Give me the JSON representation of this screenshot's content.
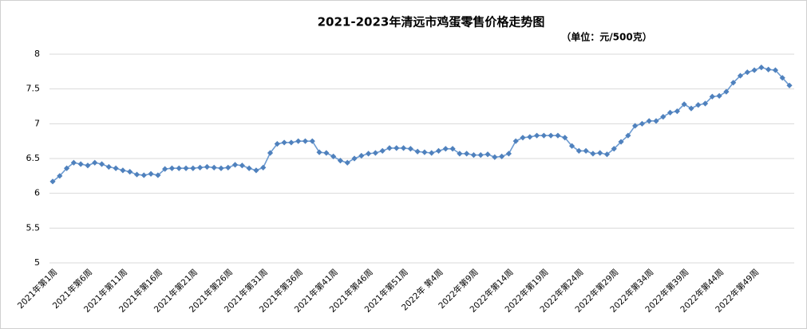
{
  "chart_data": {
    "type": "line",
    "title": "2021-2023年清远市鸡蛋零售价格走势图",
    "subtitle": "（单位：元/500克）",
    "categories": [
      "2021年第1周",
      null,
      null,
      null,
      null,
      "2021年第6周",
      null,
      null,
      null,
      null,
      "2021年第11周",
      null,
      null,
      null,
      null,
      "2021年第16周",
      null,
      null,
      null,
      null,
      "2021年第21周",
      null,
      null,
      null,
      null,
      "2021年第26周",
      null,
      null,
      null,
      null,
      "2021年第31周",
      null,
      null,
      null,
      null,
      "2021年第36周",
      null,
      null,
      null,
      null,
      "2021年第41周",
      null,
      null,
      null,
      null,
      "2021年第46周",
      null,
      null,
      null,
      null,
      "2021年第51周",
      null,
      null,
      null,
      null,
      "2022年 第4周",
      null,
      null,
      null,
      null,
      "2022年第9周",
      null,
      null,
      null,
      null,
      "2022年第14周",
      null,
      null,
      null,
      null,
      "2022年第19周",
      null,
      null,
      null,
      null,
      "2022年第24周",
      null,
      null,
      null,
      null,
      "2022年第29周",
      null,
      null,
      null,
      null,
      "2022年第34周",
      null,
      null,
      null,
      null,
      "2022年第39周",
      null,
      null,
      null,
      null,
      "2022年第44周",
      null,
      null,
      null,
      null,
      "2022年第49周",
      null,
      null,
      null,
      null,
      null
    ],
    "values": [
      6.17,
      6.25,
      6.36,
      6.44,
      6.42,
      6.4,
      6.44,
      6.42,
      6.38,
      6.36,
      6.33,
      6.31,
      6.27,
      6.26,
      6.28,
      6.26,
      6.35,
      6.36,
      6.36,
      6.36,
      6.36,
      6.37,
      6.38,
      6.37,
      6.36,
      6.37,
      6.41,
      6.4,
      6.36,
      6.33,
      6.37,
      6.58,
      6.71,
      6.73,
      6.73,
      6.75,
      6.75,
      6.75,
      6.59,
      6.58,
      6.53,
      6.47,
      6.44,
      6.5,
      6.54,
      6.57,
      6.58,
      6.61,
      6.65,
      6.65,
      6.65,
      6.64,
      6.6,
      6.59,
      6.58,
      6.61,
      6.64,
      6.64,
      6.57,
      6.57,
      6.55,
      6.55,
      6.56,
      6.52,
      6.53,
      6.57,
      6.75,
      6.8,
      6.81,
      6.83,
      6.83,
      6.83,
      6.83,
      6.8,
      6.68,
      6.61,
      6.61,
      6.57,
      6.58,
      6.56,
      6.64,
      6.74,
      6.83,
      6.97,
      7.0,
      7.04,
      7.04,
      7.1,
      7.16,
      7.18,
      7.28,
      7.22,
      7.27,
      7.29,
      7.39,
      7.4,
      7.46,
      7.59,
      7.69,
      7.74,
      7.77,
      7.81,
      7.78,
      7.77,
      7.66,
      7.55
    ],
    "color": "#4f81bd",
    "ylim": [
      5,
      8
    ],
    "yticks": [
      5,
      5.5,
      6,
      6.5,
      7,
      7.5,
      8
    ],
    "grid": true
  }
}
